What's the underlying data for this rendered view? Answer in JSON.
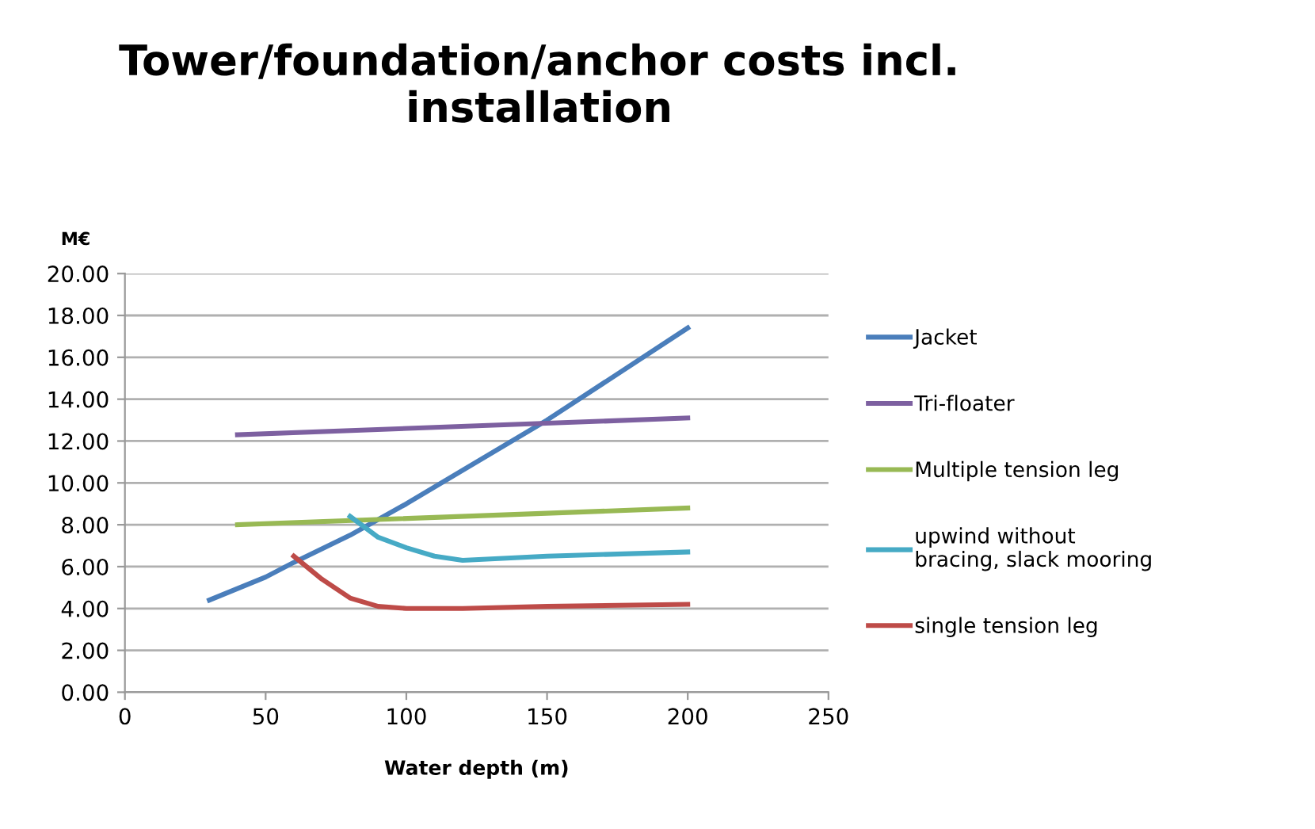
{
  "chart_data": {
    "type": "line",
    "title": "Tower/foundation/anchor costs incl. installation",
    "ylabel": "M€",
    "xlabel": "Water depth (m)",
    "xlim": [
      0,
      250
    ],
    "xticks": [
      0,
      50,
      100,
      150,
      200,
      250
    ],
    "ylim": [
      0,
      20
    ],
    "yticks": [
      {
        "value": 0,
        "label": "0.00"
      },
      {
        "value": 2,
        "label": "2.00"
      },
      {
        "value": 4,
        "label": "4.00"
      },
      {
        "value": 6,
        "label": "6.00"
      },
      {
        "value": 8,
        "label": "8.00"
      },
      {
        "value": 10,
        "label": "10.00"
      },
      {
        "value": 12,
        "label": "12.00"
      },
      {
        "value": 14,
        "label": "14.00"
      },
      {
        "value": 16,
        "label": "16.00"
      },
      {
        "value": 18,
        "label": "18.00"
      },
      {
        "value": 20,
        "label": "20.00"
      }
    ],
    "grid": "y",
    "legend": "right",
    "marker": "none",
    "line_style": "solid",
    "series": [
      {
        "name": "Jacket",
        "color": "#4a7ebb",
        "x": [
          30,
          50,
          60,
          80,
          100,
          120,
          150,
          175,
          200
        ],
        "values": [
          4.4,
          5.5,
          6.2,
          7.5,
          9.0,
          10.6,
          13.0,
          15.2,
          17.4
        ]
      },
      {
        "name": "Tri-floater",
        "color": "#7d60a0",
        "x": [
          40,
          200
        ],
        "values": [
          12.3,
          13.1
        ]
      },
      {
        "name": "Multiple tension leg",
        "color": "#98b954",
        "x": [
          40,
          200
        ],
        "values": [
          8.0,
          8.8
        ]
      },
      {
        "name": "upwind without\nbracing, slack mooring",
        "color": "#46aac5",
        "x": [
          80,
          85,
          90,
          100,
          110,
          120,
          150,
          200
        ],
        "values": [
          8.4,
          7.9,
          7.4,
          6.9,
          6.5,
          6.3,
          6.5,
          6.7
        ]
      },
      {
        "name": "single tension leg",
        "color": "#be4b48",
        "x": [
          60,
          70,
          80,
          90,
          100,
          120,
          150,
          200
        ],
        "values": [
          6.5,
          5.4,
          4.5,
          4.1,
          4.0,
          4.0,
          4.1,
          4.2
        ]
      }
    ]
  }
}
